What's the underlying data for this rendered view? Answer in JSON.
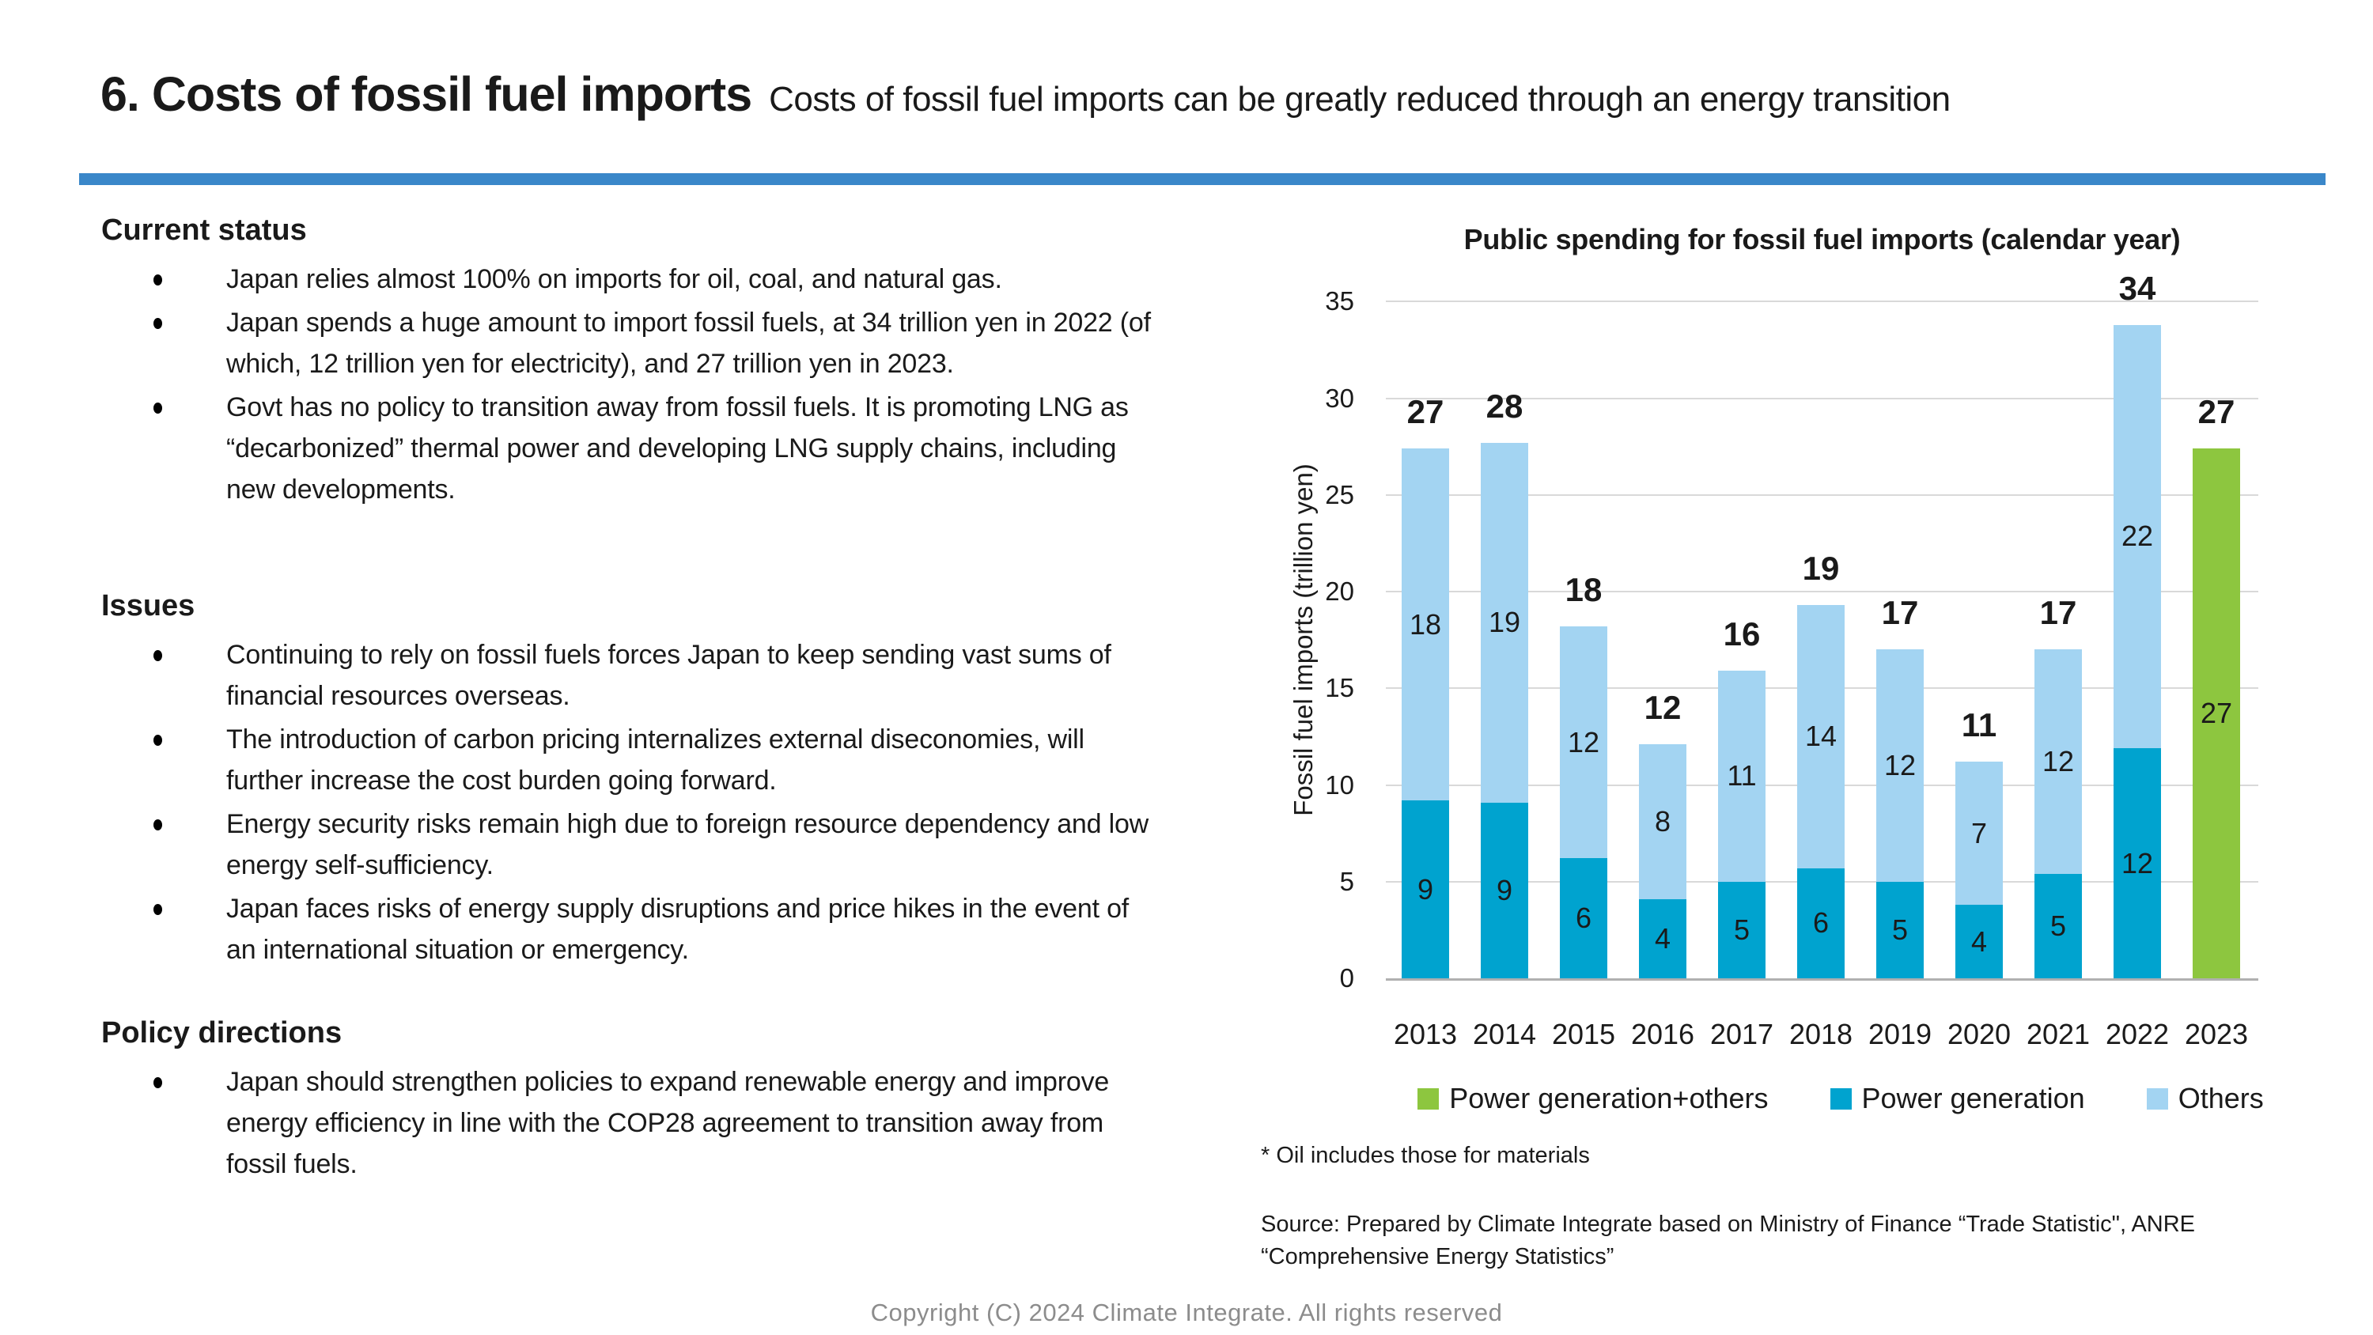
{
  "theme": {
    "rule_color": "#3a87c9",
    "grid_color": "#d9d9d9",
    "axis_color": "#b0b0b0",
    "copyright_color": "#8c8c8c"
  },
  "header": {
    "title": "6. Costs of fossil fuel imports",
    "subtitle": "Costs of fossil fuel imports can be greatly reduced through an energy transition"
  },
  "sections": {
    "current_status": {
      "heading": "Current status",
      "bullets": [
        "Japan relies almost 100% on imports for oil, coal, and natural gas.",
        "Japan spends a huge amount to import fossil fuels, at 34 trillion yen in 2022 (of which, 12 trillion yen for electricity), and 27 trillion yen in 2023.",
        "Govt has no policy to transition away from fossil fuels. It is promoting LNG as “decarbonized” thermal power and developing LNG supply chains, including new developments."
      ]
    },
    "issues": {
      "heading": "Issues",
      "bullets": [
        "Continuing to rely on fossil fuels forces Japan to keep sending vast sums of financial resources overseas.",
        "The introduction of carbon pricing internalizes external diseconomies, will further increase the cost burden going forward.",
        "Energy security risks remain high due to foreign resource dependency and low energy self-sufficiency.",
        "Japan faces risks of energy supply disruptions and price hikes in the event of an international situation or emergency."
      ]
    },
    "policy_directions": {
      "heading": "Policy directions",
      "bullets": [
        "Japan should strengthen policies to expand renewable energy and improve energy efficiency in line with the COP28 agreement to transition away from fossil fuels."
      ]
    }
  },
  "chart": {
    "title": "Public spending for fossil fuel imports (calendar year)",
    "y_axis_label": "Fossil fuel imports (trillion yen)",
    "legend": [
      {
        "label": "Power generation+others",
        "color": "#8dc63f"
      },
      {
        "label": "Power generation",
        "color": "#00a3cf"
      },
      {
        "label": "Others",
        "color": "#a3d4f2"
      }
    ],
    "footnote": "* Oil includes those for materials",
    "source_line1": "Source: Prepared by Climate Integrate based on Ministry of Finance “Trade Statistic\", ANRE",
    "source_line2": "“Comprehensive Energy Statistics”"
  },
  "chart_data": {
    "type": "bar",
    "stacked": true,
    "title": "Public spending for fossil fuel imports (calendar year)",
    "ylabel": "Fossil fuel imports (trillion yen)",
    "xlabel": "",
    "ylim": [
      0,
      35
    ],
    "ytick_step": 5,
    "grid": true,
    "legend_position": "bottom",
    "categories": [
      "2013",
      "2014",
      "2015",
      "2016",
      "2017",
      "2018",
      "2019",
      "2020",
      "2021",
      "2022",
      "2023"
    ],
    "series": [
      {
        "name": "Power generation",
        "color": "#00a3cf",
        "values": [
          9,
          9,
          6,
          4,
          5,
          6,
          5,
          4,
          5,
          12,
          null
        ],
        "values_est": [
          9.2,
          9.1,
          6.2,
          4.1,
          5.0,
          5.7,
          5.0,
          3.8,
          5.4,
          11.9,
          null
        ]
      },
      {
        "name": "Others",
        "color": "#a3d4f2",
        "values": [
          18,
          19,
          12,
          8,
          11,
          14,
          12,
          7,
          12,
          22,
          null
        ],
        "values_est": [
          18.2,
          18.6,
          12.0,
          8.0,
          10.9,
          13.6,
          12.0,
          7.4,
          11.6,
          21.9,
          null
        ]
      },
      {
        "name": "Power generation+others",
        "color": "#8dc63f",
        "values": [
          null,
          null,
          null,
          null,
          null,
          null,
          null,
          null,
          null,
          null,
          27
        ],
        "values_est": [
          null,
          null,
          null,
          null,
          null,
          null,
          null,
          null,
          null,
          null,
          27.4
        ]
      }
    ],
    "totals": [
      27,
      28,
      18,
      12,
      16,
      19,
      17,
      11,
      17,
      34,
      27
    ]
  },
  "footer": {
    "copyright": "Copyright (C) 2024 Climate Integrate. All rights reserved"
  }
}
